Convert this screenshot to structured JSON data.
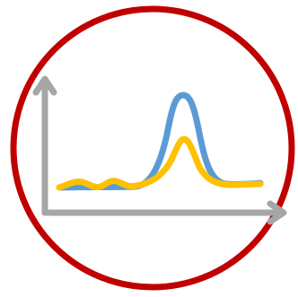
{
  "icon": {
    "type": "chromatogram-icon",
    "colors": {
      "ring": "#C00000",
      "axes": "#A6A6A6",
      "series_blue": "#5B9BD5",
      "series_yellow": "#FFC000",
      "background": "#FFFFFF"
    }
  }
}
